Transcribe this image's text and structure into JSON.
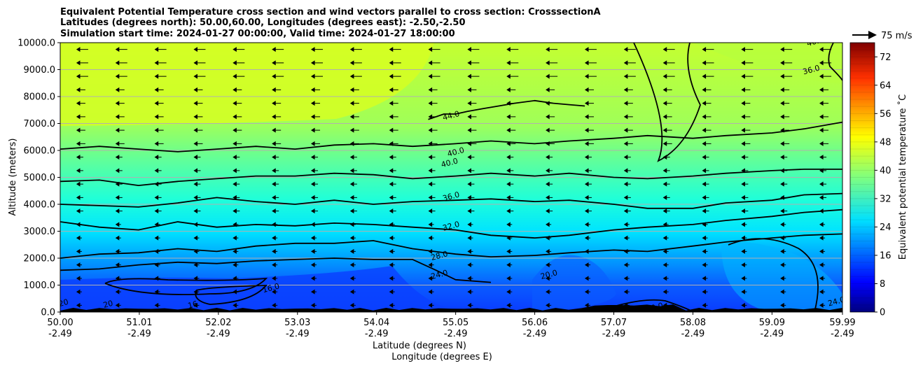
{
  "chart_data": {
    "type": "heatmap",
    "title_lines": [
      "Equivalent Potential Temperature cross section and wind vectors parallel to cross section: CrosssectionA",
      "Latitudes (degrees north): 50.00,60.00, Longitudes (degrees east): -2.50,-2.50",
      "Simulation start time: 2024-01-27 00:00:00, Valid time: 2024-01-27 18:00:00"
    ],
    "ylabel": "Altitude (meters)",
    "xlabel_lat": "Latitude (degrees N)",
    "xlabel_lon": "Longitude (degrees E)",
    "ylim": [
      0,
      10000
    ],
    "yticks": [
      "0.0",
      "1000.0",
      "2000.0",
      "3000.0",
      "4000.0",
      "5000.0",
      "6000.0",
      "7000.0",
      "8000.0",
      "9000.0",
      "10000.0"
    ],
    "ytick_values": [
      0,
      1000,
      2000,
      3000,
      4000,
      5000,
      6000,
      7000,
      8000,
      9000,
      10000
    ],
    "xlim": [
      50.0,
      59.99
    ],
    "xtick_values": [
      50.0,
      51.01,
      52.02,
      53.03,
      54.04,
      55.05,
      56.06,
      57.07,
      58.08,
      59.09,
      59.99
    ],
    "xticks_lat": [
      "50.00",
      "51.01",
      "52.02",
      "53.03",
      "54.04",
      "55.05",
      "56.06",
      "57.07",
      "58.08",
      "59.09",
      "59.99"
    ],
    "xticks_lon": [
      "-2.49",
      "-2.49",
      "-2.49",
      "-2.49",
      "-2.49",
      "-2.49",
      "-2.49",
      "-2.49",
      "-2.49",
      "-2.49",
      "-2.49"
    ],
    "grid": true,
    "colorbar": {
      "label": "Equivalent potential temperature ˚C",
      "range": [
        0,
        76
      ],
      "ticks": [
        "0",
        "8",
        "16",
        "24",
        "32",
        "40",
        "48",
        "56",
        "64",
        "72"
      ],
      "tick_values": [
        0,
        8,
        16,
        24,
        32,
        40,
        48,
        56,
        64,
        72
      ],
      "colormap": "jet"
    },
    "quiver_key": "75 m/s",
    "contour_labels": [
      {
        "text": "44.0",
        "lat": 55.0,
        "alt": 7200
      },
      {
        "text": "40.0",
        "lat": 55.06,
        "alt": 5850
      },
      {
        "text": "40.0",
        "lat": 54.98,
        "alt": 5450
      },
      {
        "text": "36.0",
        "lat": 55.0,
        "alt": 4200
      },
      {
        "text": "32.0",
        "lat": 55.0,
        "alt": 3100
      },
      {
        "text": "28.0",
        "lat": 54.85,
        "alt": 2000
      },
      {
        "text": "24.0",
        "lat": 54.85,
        "alt": 1300
      },
      {
        "text": "20.0",
        "lat": 56.25,
        "alt": 1300
      },
      {
        "text": "16.0",
        "lat": 52.7,
        "alt": 800
      },
      {
        "text": "16",
        "lat": 51.7,
        "alt": 180
      },
      {
        "text": "20",
        "lat": 50.05,
        "alt": 250
      },
      {
        "text": "20",
        "lat": 50.62,
        "alt": 200
      },
      {
        "text": "20.0",
        "lat": 57.6,
        "alt": 80
      },
      {
        "text": "36.0",
        "lat": 59.6,
        "alt": 8900
      },
      {
        "text": "40.0",
        "lat": 59.65,
        "alt": 9950
      },
      {
        "text": "24.0",
        "lat": 59.92,
        "alt": 300
      }
    ],
    "series": [
      {
        "name": "theta_e 44.0 contour",
        "x": [
          54.7,
          54.9,
          55.05,
          55.2,
          55.4,
          55.6,
          55.8,
          56.06,
          56.3,
          56.5,
          56.7
        ],
        "y": [
          7150,
          7350,
          7350,
          7450,
          7550,
          7650,
          7750,
          7850,
          7750,
          7700,
          7650
        ]
      },
      {
        "name": "theta_e 40.0 contour",
        "x": [
          50.0,
          50.5,
          51.0,
          51.5,
          52.0,
          52.5,
          53.0,
          53.5,
          54.0,
          54.5,
          55.05,
          55.5,
          56.06,
          56.5,
          57.07,
          57.5,
          58.08,
          58.5,
          59.09,
          59.5,
          59.99
        ],
        "y": [
          6050,
          6150,
          6050,
          5950,
          6050,
          6150,
          6050,
          6200,
          6250,
          6150,
          6250,
          6350,
          6250,
          6350,
          6450,
          6550,
          6450,
          6550,
          6650,
          6800,
          7050
        ]
      },
      {
        "name": "theta_e 36.0 contour",
        "x": [
          50.0,
          50.5,
          51.0,
          51.5,
          52.0,
          52.5,
          53.0,
          53.5,
          54.0,
          54.5,
          55.05,
          55.5,
          56.06,
          56.5,
          57.07,
          57.5,
          58.08,
          58.5,
          59.09,
          59.5,
          59.99
        ],
        "y": [
          4850,
          4900,
          4700,
          4850,
          4950,
          5050,
          5050,
          5150,
          5100,
          4950,
          5050,
          5150,
          5050,
          5150,
          5000,
          4950,
          5050,
          5150,
          5250,
          5300,
          5300
        ]
      },
      {
        "name": "theta_e 32.0 contour",
        "x": [
          50.0,
          50.5,
          51.0,
          51.5,
          52.0,
          52.5,
          53.0,
          53.5,
          54.0,
          54.5,
          55.05,
          55.5,
          56.06,
          56.5,
          57.07,
          57.5,
          58.08,
          58.5,
          59.09,
          59.5,
          59.99
        ],
        "y": [
          4000,
          3950,
          3900,
          4050,
          4250,
          4100,
          4000,
          4150,
          4000,
          4100,
          4150,
          4200,
          4100,
          4150,
          4000,
          3850,
          3850,
          4050,
          4150,
          4350,
          4400
        ]
      },
      {
        "name": "theta_e 28.0 contour",
        "x": [
          50.0,
          50.5,
          51.0,
          51.5,
          52.0,
          52.5,
          53.0,
          53.5,
          54.0,
          54.5,
          55.05,
          55.5,
          56.06,
          56.5,
          57.07,
          57.5,
          58.08,
          58.5,
          59.09,
          59.5,
          59.99
        ],
        "y": [
          3350,
          3150,
          3050,
          3350,
          3150,
          3250,
          3200,
          3300,
          3250,
          3150,
          3050,
          2850,
          2750,
          2850,
          3050,
          3150,
          3250,
          3400,
          3550,
          3700,
          3800
        ]
      },
      {
        "name": "theta_e 24.0 contour",
        "x": [
          50.0,
          50.5,
          51.0,
          51.5,
          52.0,
          52.5,
          53.0,
          53.5,
          54.0,
          54.5,
          55.05,
          55.5,
          56.06,
          56.5,
          57.07,
          57.5,
          58.08,
          58.5,
          59.09,
          59.5,
          59.99
        ],
        "y": [
          2000,
          2150,
          2200,
          2350,
          2250,
          2450,
          2550,
          2550,
          2650,
          2350,
          2150,
          2050,
          2100,
          2200,
          2300,
          2250,
          2450,
          2600,
          2750,
          2850,
          2900
        ]
      },
      {
        "name": "theta_e 20.0 contour",
        "x": [
          50.0,
          50.5,
          51.0,
          51.5,
          52.0,
          52.5,
          53.0,
          53.5,
          54.0,
          54.5,
          54.8,
          55.05,
          55.5
        ],
        "y": [
          1550,
          1600,
          1750,
          1850,
          1800,
          1900,
          1950,
          2000,
          1950,
          1950,
          1550,
          1200,
          1100
        ]
      }
    ]
  }
}
